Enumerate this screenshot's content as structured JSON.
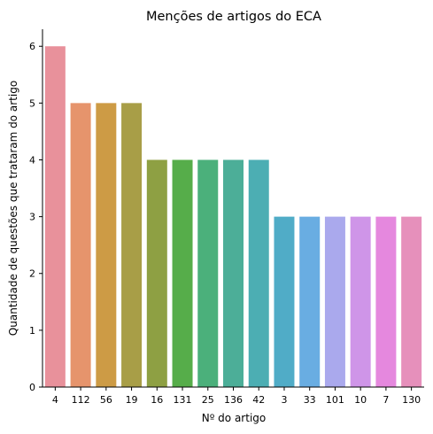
{
  "chart_data": {
    "type": "bar",
    "title": "Menções de artigos do ECA",
    "xlabel": "Nº do artigo",
    "ylabel": "Quantidade de questões que trataram do artigo",
    "categories": [
      "4",
      "112",
      "56",
      "19",
      "16",
      "131",
      "25",
      "136",
      "42",
      "3",
      "33",
      "101",
      "10",
      "7",
      "130"
    ],
    "values": [
      6,
      5,
      5,
      5,
      4,
      4,
      4,
      4,
      4,
      3,
      3,
      3,
      3,
      3,
      3
    ],
    "colors": [
      "#e8919b",
      "#e6946c",
      "#cd9b45",
      "#a89e47",
      "#8ea043",
      "#56ad4a",
      "#4bb07b",
      "#4cae98",
      "#4caeb3",
      "#50acc7",
      "#69ade2",
      "#aaa9ed",
      "#cf95e8",
      "#e588de",
      "#e690bb"
    ],
    "yticks": [
      0,
      1,
      2,
      3,
      4,
      5,
      6
    ],
    "ylim": [
      0,
      6.3
    ],
    "grid": false,
    "legend": "none"
  }
}
